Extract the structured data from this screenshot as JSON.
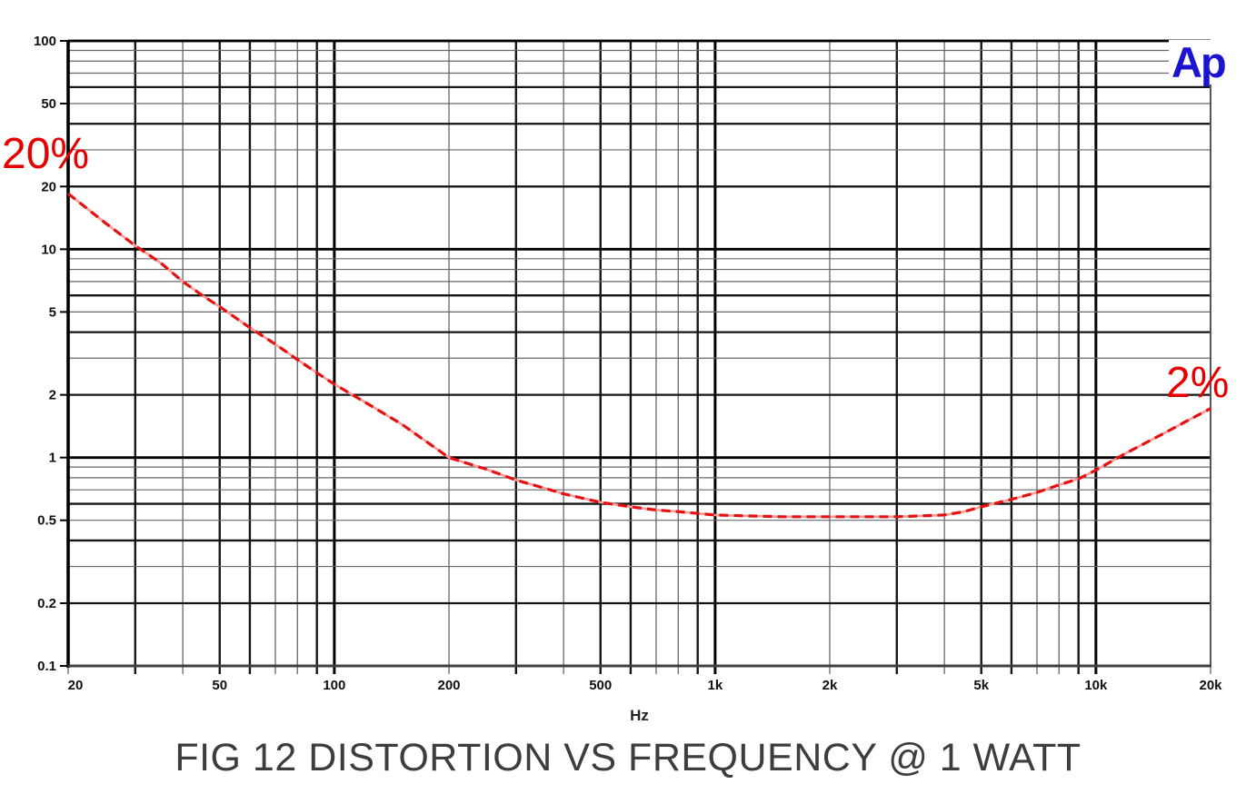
{
  "page": {
    "background": "#ffffff"
  },
  "logo": {
    "text": "Ap",
    "color": "#1a13cf"
  },
  "caption": {
    "text": "FIG 12  DISTORTION VS FREQUENCY @ 1 WATT",
    "color": "#3d3d3d"
  },
  "chart_data": {
    "type": "line",
    "title": "FIG 12  DISTORTION VS FREQUENCY @ 1 WATT",
    "x_axis": {
      "label": "Hz",
      "scale": "log",
      "min": 20,
      "max": 20000,
      "tick_values": [
        20,
        50,
        100,
        200,
        500,
        1000,
        2000,
        5000,
        10000,
        20000
      ],
      "tick_labels": [
        "20",
        "50",
        "100",
        "200",
        "500",
        "1k",
        "2k",
        "5k",
        "10k",
        "20k"
      ]
    },
    "y_axis": {
      "label": "",
      "scale": "log",
      "min": 0.1,
      "max": 100,
      "tick_values": [
        100,
        50,
        20,
        10,
        5,
        2,
        1,
        0.5,
        0.2,
        0.1
      ],
      "tick_labels": [
        "100",
        "50",
        "20",
        "10",
        "5",
        "2",
        "1",
        "0.5",
        "0.2",
        "0.1"
      ]
    },
    "xlim": [
      20,
      20000
    ],
    "ylim": [
      0.1,
      100
    ],
    "grid": {
      "style": "log-minor",
      "major_color": "#000000",
      "minor_color": "#686868"
    },
    "legend": "none",
    "series": [
      {
        "name": "distortion-vs-frequency",
        "style": "dashed",
        "line_color": "#ff9a9a",
        "dash_color": "#e31111",
        "points": [
          [
            20,
            18.5
          ],
          [
            25,
            13.4
          ],
          [
            30,
            10.4
          ],
          [
            35,
            8.6
          ],
          [
            40,
            7.0
          ],
          [
            45,
            6.0
          ],
          [
            50,
            5.3
          ],
          [
            60,
            4.2
          ],
          [
            70,
            3.5
          ],
          [
            80,
            2.95
          ],
          [
            90,
            2.55
          ],
          [
            100,
            2.25
          ],
          [
            120,
            1.85
          ],
          [
            150,
            1.45
          ],
          [
            200,
            1.0
          ],
          [
            250,
            0.88
          ],
          [
            300,
            0.78
          ],
          [
            350,
            0.72
          ],
          [
            400,
            0.67
          ],
          [
            500,
            0.61
          ],
          [
            600,
            0.58
          ],
          [
            700,
            0.56
          ],
          [
            800,
            0.55
          ],
          [
            1000,
            0.53
          ],
          [
            1200,
            0.525
          ],
          [
            1500,
            0.52
          ],
          [
            2000,
            0.52
          ],
          [
            2500,
            0.52
          ],
          [
            3000,
            0.52
          ],
          [
            3500,
            0.525
          ],
          [
            4000,
            0.53
          ],
          [
            4500,
            0.55
          ],
          [
            5000,
            0.58
          ],
          [
            6000,
            0.63
          ],
          [
            7000,
            0.68
          ],
          [
            8000,
            0.74
          ],
          [
            9000,
            0.79
          ],
          [
            10000,
            0.87
          ],
          [
            12000,
            1.05
          ],
          [
            15000,
            1.3
          ],
          [
            17000,
            1.47
          ],
          [
            20000,
            1.72
          ]
        ]
      }
    ],
    "annotations": [
      {
        "text": "20%",
        "color": "#e60000",
        "position": "curve-start"
      },
      {
        "text": "2%",
        "color": "#e60000",
        "position": "curve-end"
      }
    ]
  }
}
